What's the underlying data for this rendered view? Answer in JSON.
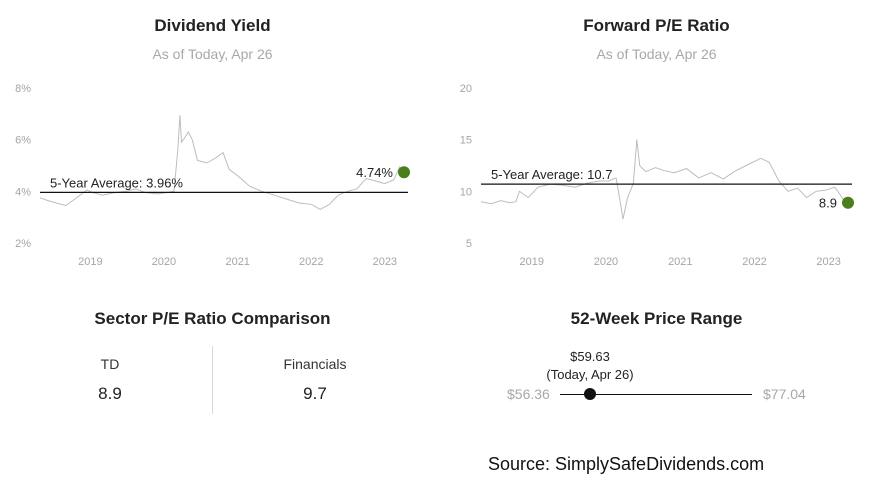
{
  "chart_data": [
    {
      "type": "line",
      "title": "Dividend Yield",
      "subtitle": "As of Today, Apr 26",
      "x_ticks": [
        "2019",
        "2020",
        "2021",
        "2022",
        "2023"
      ],
      "y_ticks": [
        "2%",
        "4%",
        "6%",
        "8%"
      ],
      "ylim": [
        2,
        8
      ],
      "xlim": [
        "2018-04-26",
        "2023-04-26"
      ],
      "average": {
        "label": "5-Year Average: 3.96%",
        "value": 3.96
      },
      "current": {
        "label": "4.74%",
        "value": 4.74
      },
      "accent_color": "#4c7f1c",
      "line_color": "#bdbdbd",
      "series": [
        {
          "x": "2018-04-26",
          "y": 3.75
        },
        {
          "x": "2018-06-01",
          "y": 3.65
        },
        {
          "x": "2018-07-15",
          "y": 3.55
        },
        {
          "x": "2018-09-01",
          "y": 3.45
        },
        {
          "x": "2018-10-15",
          "y": 3.7
        },
        {
          "x": "2018-12-15",
          "y": 4.05
        },
        {
          "x": "2019-01-15",
          "y": 3.95
        },
        {
          "x": "2019-03-01",
          "y": 3.85
        },
        {
          "x": "2019-05-01",
          "y": 3.95
        },
        {
          "x": "2019-07-01",
          "y": 4.0
        },
        {
          "x": "2019-08-15",
          "y": 4.1
        },
        {
          "x": "2019-10-01",
          "y": 3.95
        },
        {
          "x": "2019-12-01",
          "y": 3.9
        },
        {
          "x": "2020-01-15",
          "y": 3.95
        },
        {
          "x": "2020-02-20",
          "y": 4.0
        },
        {
          "x": "2020-03-10",
          "y": 5.6
        },
        {
          "x": "2020-03-20",
          "y": 6.95
        },
        {
          "x": "2020-03-28",
          "y": 5.9
        },
        {
          "x": "2020-04-15",
          "y": 6.1
        },
        {
          "x": "2020-05-01",
          "y": 6.3
        },
        {
          "x": "2020-05-20",
          "y": 6.0
        },
        {
          "x": "2020-06-15",
          "y": 5.2
        },
        {
          "x": "2020-08-01",
          "y": 5.1
        },
        {
          "x": "2020-09-15",
          "y": 5.3
        },
        {
          "x": "2020-10-20",
          "y": 5.5
        },
        {
          "x": "2020-11-20",
          "y": 4.85
        },
        {
          "x": "2021-01-01",
          "y": 4.6
        },
        {
          "x": "2021-03-01",
          "y": 4.2
        },
        {
          "x": "2021-05-01",
          "y": 4.0
        },
        {
          "x": "2021-07-01",
          "y": 3.85
        },
        {
          "x": "2021-09-01",
          "y": 3.7
        },
        {
          "x": "2021-11-01",
          "y": 3.55
        },
        {
          "x": "2022-01-01",
          "y": 3.5
        },
        {
          "x": "2022-02-15",
          "y": 3.3
        },
        {
          "x": "2022-04-01",
          "y": 3.5
        },
        {
          "x": "2022-05-15",
          "y": 3.85
        },
        {
          "x": "2022-07-01",
          "y": 4.0
        },
        {
          "x": "2022-08-15",
          "y": 4.1
        },
        {
          "x": "2022-10-01",
          "y": 4.5
        },
        {
          "x": "2022-11-15",
          "y": 4.4
        },
        {
          "x": "2023-01-01",
          "y": 4.3
        },
        {
          "x": "2023-02-15",
          "y": 4.45
        },
        {
          "x": "2023-03-15",
          "y": 4.95
        },
        {
          "x": "2023-04-26",
          "y": 4.74
        }
      ]
    },
    {
      "type": "line",
      "title": "Forward P/E Ratio",
      "subtitle": "As of Today, Apr 26",
      "x_ticks": [
        "2019",
        "2020",
        "2021",
        "2022",
        "2023"
      ],
      "y_ticks": [
        "5",
        "10",
        "15",
        "20"
      ],
      "ylim": [
        5,
        20
      ],
      "xlim": [
        "2018-04-26",
        "2023-04-26"
      ],
      "average": {
        "label": "5-Year Average: 10.7",
        "value": 10.7
      },
      "current": {
        "label": "8.9",
        "value": 8.9
      },
      "accent_color": "#4c7f1c",
      "line_color": "#bdbdbd",
      "series": [
        {
          "x": "2018-04-26",
          "y": 9.0
        },
        {
          "x": "2018-06-15",
          "y": 8.8
        },
        {
          "x": "2018-08-01",
          "y": 9.1
        },
        {
          "x": "2018-09-15",
          "y": 8.9
        },
        {
          "x": "2018-10-15",
          "y": 9.0
        },
        {
          "x": "2018-11-01",
          "y": 10.0
        },
        {
          "x": "2018-12-15",
          "y": 9.4
        },
        {
          "x": "2019-02-01",
          "y": 10.4
        },
        {
          "x": "2019-04-01",
          "y": 10.7
        },
        {
          "x": "2019-06-01",
          "y": 10.6
        },
        {
          "x": "2019-08-01",
          "y": 10.4
        },
        {
          "x": "2019-10-01",
          "y": 10.8
        },
        {
          "x": "2019-12-01",
          "y": 11.0
        },
        {
          "x": "2020-01-15",
          "y": 11.0
        },
        {
          "x": "2020-02-20",
          "y": 11.3
        },
        {
          "x": "2020-03-15",
          "y": 8.5
        },
        {
          "x": "2020-03-25",
          "y": 7.3
        },
        {
          "x": "2020-04-15",
          "y": 9.3
        },
        {
          "x": "2020-05-15",
          "y": 10.8
        },
        {
          "x": "2020-06-01",
          "y": 15.0
        },
        {
          "x": "2020-06-15",
          "y": 12.5
        },
        {
          "x": "2020-07-15",
          "y": 11.9
        },
        {
          "x": "2020-09-01",
          "y": 12.3
        },
        {
          "x": "2020-10-15",
          "y": 12.0
        },
        {
          "x": "2020-12-01",
          "y": 11.8
        },
        {
          "x": "2021-02-01",
          "y": 12.2
        },
        {
          "x": "2021-04-01",
          "y": 11.3
        },
        {
          "x": "2021-06-01",
          "y": 11.8
        },
        {
          "x": "2021-08-01",
          "y": 11.2
        },
        {
          "x": "2021-10-01",
          "y": 12.0
        },
        {
          "x": "2021-12-01",
          "y": 12.6
        },
        {
          "x": "2022-02-01",
          "y": 13.2
        },
        {
          "x": "2022-03-15",
          "y": 12.8
        },
        {
          "x": "2022-05-01",
          "y": 11.0
        },
        {
          "x": "2022-06-15",
          "y": 10.0
        },
        {
          "x": "2022-08-01",
          "y": 10.3
        },
        {
          "x": "2022-09-15",
          "y": 9.4
        },
        {
          "x": "2022-11-01",
          "y": 10.0
        },
        {
          "x": "2022-12-15",
          "y": 10.1
        },
        {
          "x": "2023-02-01",
          "y": 10.4
        },
        {
          "x": "2023-03-15",
          "y": 9.2
        },
        {
          "x": "2023-04-26",
          "y": 8.9
        }
      ]
    }
  ],
  "sector": {
    "title": "Sector P/E Ratio Comparison",
    "items": [
      {
        "name": "TD",
        "value": "8.9"
      },
      {
        "name": "Financials",
        "value": "9.7"
      }
    ]
  },
  "price_range": {
    "title": "52-Week Price Range",
    "low_label": "$56.36",
    "high_label": "$77.04",
    "low": 56.36,
    "high": 77.04,
    "current": 59.63,
    "current_label": "$59.63",
    "current_date": "(Today, Apr 26)"
  },
  "source": "Source: SimplySafeDividends.com"
}
